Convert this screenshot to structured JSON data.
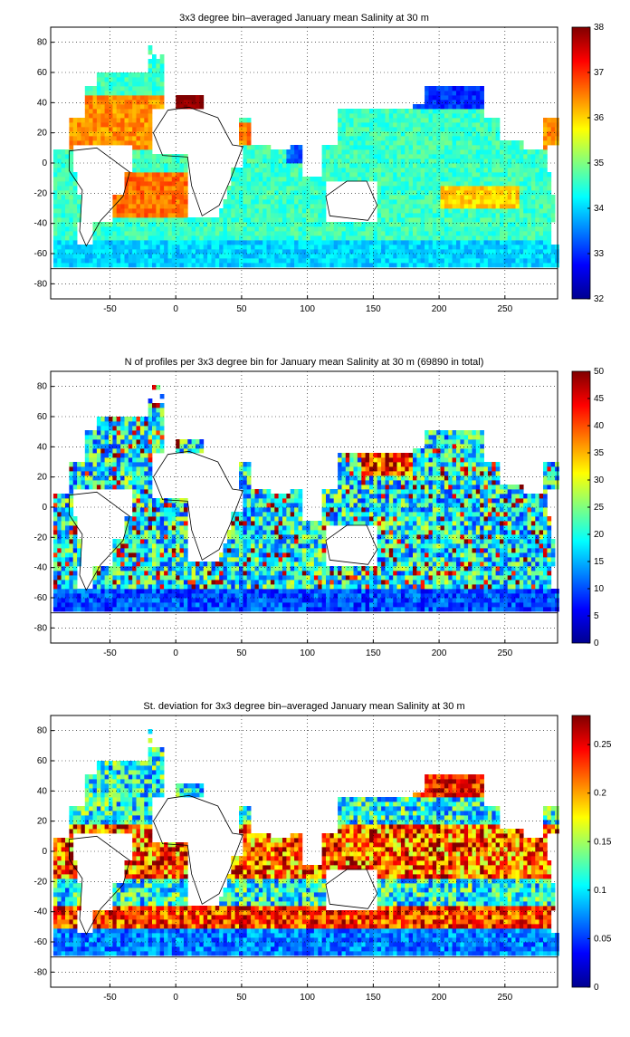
{
  "panels": [
    {
      "title": "3x3 degree bin–averaged January mean Salinity at 30 m",
      "colorbar": {
        "ticks": [
          "32",
          "33",
          "34",
          "35",
          "36",
          "37",
          "38"
        ],
        "min": 32,
        "max": 38
      },
      "field": "salinity"
    },
    {
      "title": "N of profiles per 3x3 degree bin for January mean Salinity at 30 m (69890 in total)",
      "colorbar": {
        "ticks": [
          "0",
          "5",
          "10",
          "15",
          "20",
          "25",
          "30",
          "35",
          "40",
          "45",
          "50"
        ],
        "min": 0,
        "max": 50
      },
      "field": "count"
    },
    {
      "title": "St. deviation for 3x3 degree bin–averaged January mean Salinity at 30 m",
      "colorbar": {
        "ticks": [
          "0",
          "0.05",
          "0.1",
          "0.15",
          "0.2",
          "0.25"
        ],
        "min": 0,
        "max": 0.28
      },
      "field": "stdev"
    }
  ],
  "axes": {
    "x_ticks": [
      "-50",
      "0",
      "50",
      "100",
      "150",
      "200",
      "250"
    ],
    "y_ticks": [
      "80",
      "60",
      "40",
      "20",
      "0",
      "-20",
      "-40",
      "-60",
      "-80"
    ],
    "xlim": [
      -95,
      290
    ],
    "ylim": [
      -90,
      90
    ],
    "grid": "dotted"
  },
  "colormap": "jet"
}
